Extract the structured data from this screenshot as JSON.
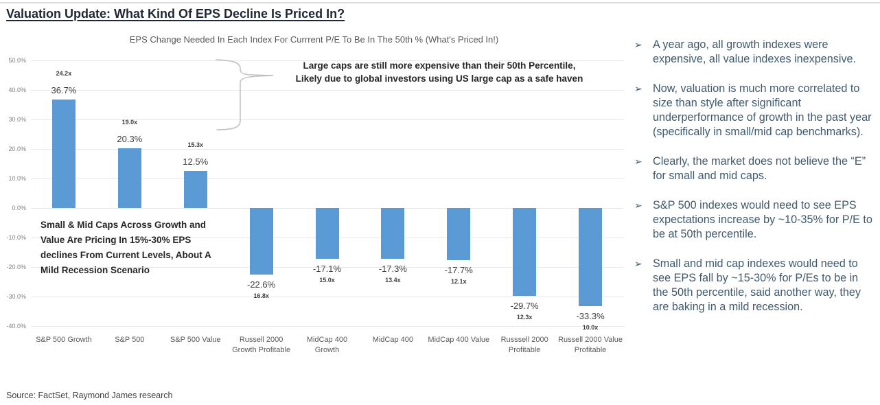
{
  "page": {
    "title": "Valuation Update: What Kind Of EPS Decline Is Priced In?",
    "source": "Source: FactSet, Raymond James research"
  },
  "chart_data": {
    "type": "bar",
    "title": "EPS Change Needed In Each Index For Currrent P/E To Be In The 50th %  (What's Priced In!)",
    "xlabel": "",
    "ylabel": "",
    "ylim": [
      -40,
      50
    ],
    "grid": true,
    "legend_position": "none",
    "bar_color": "#5B9BD5",
    "categories": [
      "S&P 500 Growth",
      "S&P 500",
      "S&P 500 Value",
      "Russell 2000 Growth Profitable",
      "MidCap 400 Growth",
      "MidCap 400",
      "MidCap 400 Value",
      "Russsell 2000 Profitable",
      "Russell 2000 Value Profitable"
    ],
    "values": [
      36.7,
      20.3,
      12.5,
      -22.6,
      -17.1,
      -17.3,
      -17.7,
      -29.7,
      -33.3
    ],
    "value_labels": [
      "36.7%",
      "20.3%",
      "12.5%",
      "-22.6%",
      "-17.1%",
      "-17.3%",
      "-17.7%",
      "-29.7%",
      "-33.3%"
    ],
    "pe_labels": [
      "24.2x",
      "19.0x",
      "15.3x",
      "16.8x",
      "15.0x",
      "13.4x",
      "12.1x",
      "12.3x",
      "10.0x"
    ],
    "ytick_values": [
      50,
      40,
      30,
      20,
      10,
      0,
      -10,
      -20,
      -30,
      -40
    ],
    "ytick_labels": [
      "50.0%",
      "40.0%",
      "30.0%",
      "20.0%",
      "10.0%",
      "0.0%",
      "-10.0%",
      "-20.0%",
      "-30.0%",
      "-40.0%"
    ],
    "annotations": {
      "large_caps_lines": [
        "Large caps are still more expensive than their 50th Percentile,",
        "Likely due to global investors using US large cap as a safe haven"
      ],
      "small_mid_lines": [
        "Small & Mid Caps Across Growth and",
        "Value Are Pricing In 15%-30% EPS",
        "declines From Current Levels, About A",
        "Mild Recession Scenario"
      ]
    }
  },
  "commentary": {
    "bullet_glyph": "➢",
    "bullets": [
      "A year ago, all growth indexes were expensive, all value indexes inexpensive.",
      "Now, valuation is much more correlated to size than style after significant underperformance of growth in the past year (specifically in small/mid cap benchmarks).",
      "Clearly, the market does not believe the “E” for small and mid caps.",
      "S&P 500 indexes would need to see EPS expectations increase by ~10-35% for P/E to be at 50th percentile.",
      "Small and mid cap indexes would need to see EPS fall by ~15-30% for P/Es to be in the 50th percentile, said another way, they are baking in a mild recession."
    ]
  },
  "colors": {
    "bar": "#5B9BD5",
    "bullet_text": "#3F5A6C",
    "axis_text": "#7F7F7F",
    "gridline": "#E7E7E7",
    "annotation_text": "#262626",
    "title_text": "#1F2733"
  }
}
